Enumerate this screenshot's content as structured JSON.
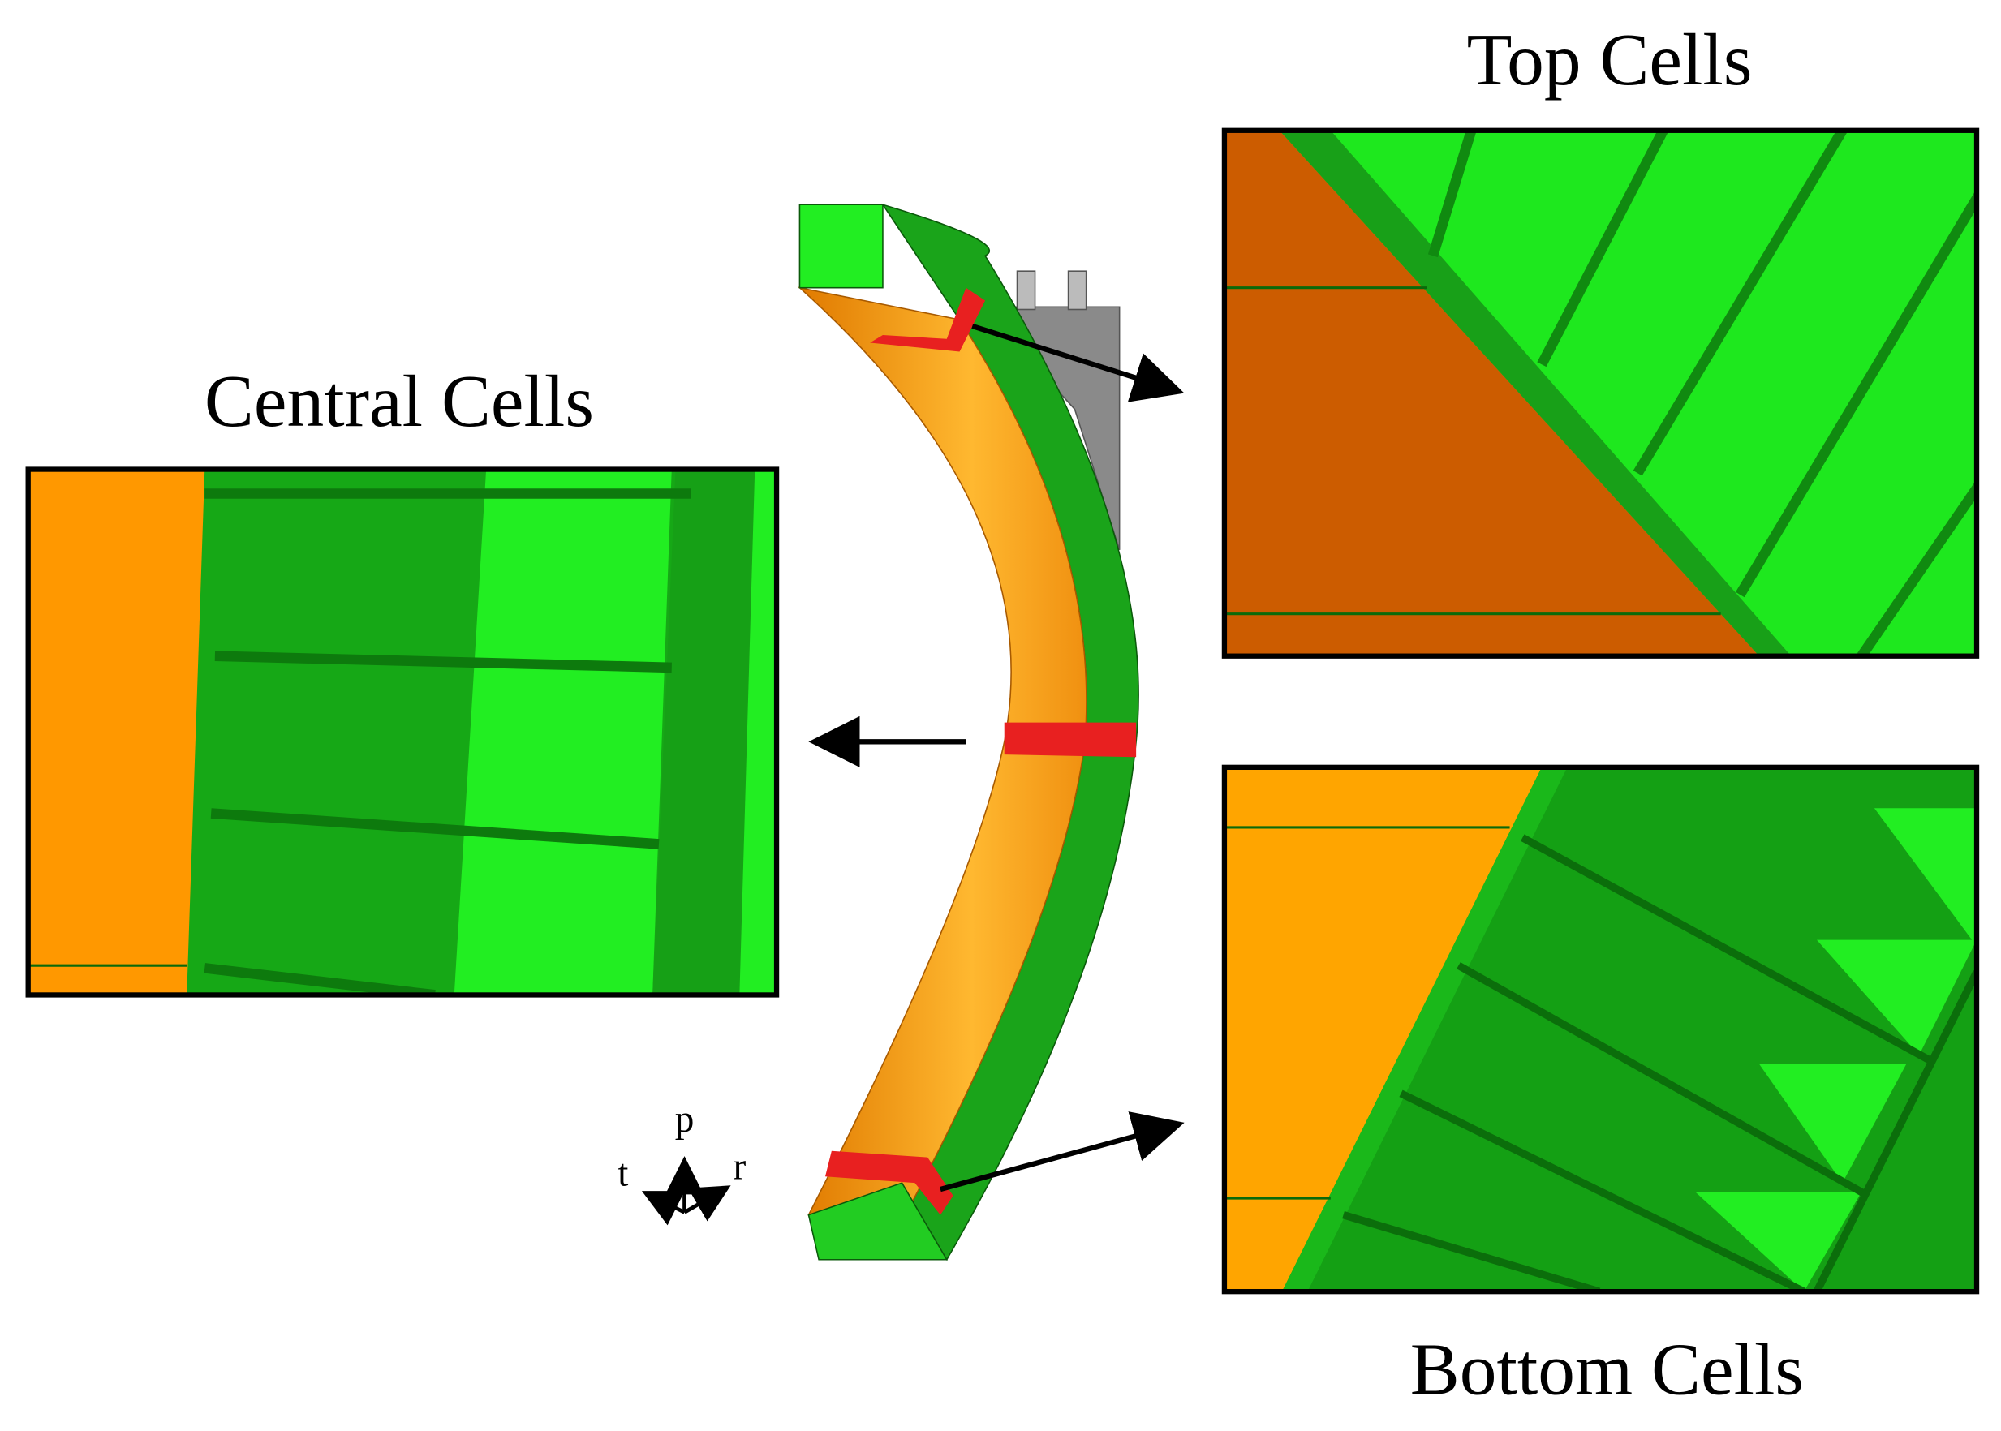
{
  "labels": {
    "top": "Top Cells",
    "central": "Central Cells",
    "bottom": "Bottom Cells"
  },
  "axes": {
    "poloidal": "p",
    "toroidal": "t",
    "radial": "r"
  }
}
